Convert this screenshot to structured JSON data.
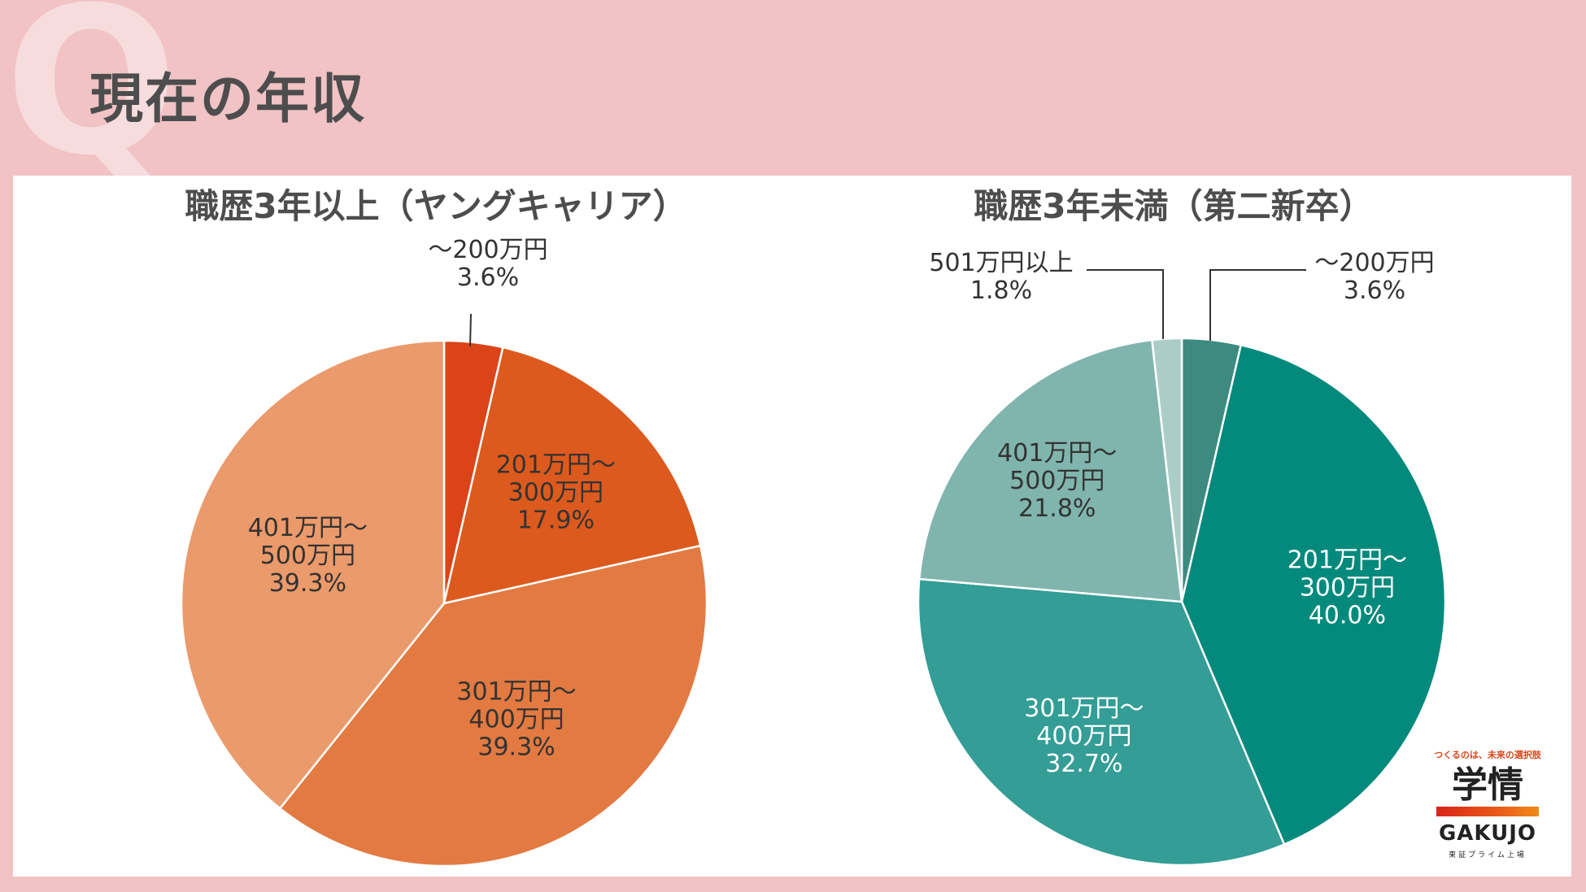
{
  "header": {
    "q_letter": "Q",
    "title": "現在の年収"
  },
  "chart_data": [
    {
      "type": "pie",
      "title": "職歴3年以上（ヤングキャリア）",
      "categories": [
        "～200万円",
        "201万円～300万円",
        "301万円～400万円",
        "401万円～500万円"
      ],
      "values": [
        3.6,
        17.9,
        39.3,
        39.3
      ],
      "labels": [
        [
          "～200万円",
          "3.6%"
        ],
        [
          "201万円～",
          "300万円",
          "17.9%"
        ],
        [
          "301万円～",
          "400万円",
          "39.3%"
        ],
        [
          "401万円～",
          "500万円",
          "39.3%"
        ]
      ],
      "colors": [
        "#da4418",
        "#dc5a1d",
        "#e27a41",
        "#eb9a6b"
      ],
      "light_labels": [
        false,
        false,
        false,
        false
      ]
    },
    {
      "type": "pie",
      "title": "職歴3年未満（第二新卒）",
      "categories": [
        "～200万円",
        "201万円～300万円",
        "301万円～400万円",
        "401万円～500万円",
        "501万円以上"
      ],
      "values": [
        3.6,
        40.0,
        32.7,
        21.8,
        1.8
      ],
      "labels": [
        [
          "～200万円",
          "3.6%"
        ],
        [
          "201万円～",
          "300万円",
          "40.0%"
        ],
        [
          "301万円～",
          "400万円",
          "32.7%"
        ],
        [
          "401万円～",
          "500万円",
          "21.8%"
        ],
        [
          "501万円以上",
          "1.8%"
        ]
      ],
      "colors": [
        "#3d8a80",
        "#038a7c",
        "#339d96",
        "#80b5ae",
        "#abcdc8"
      ],
      "light_labels": [
        false,
        true,
        true,
        false,
        false
      ]
    }
  ],
  "brand": {
    "tagline": "つくるのは、未来の選択肢",
    "kanji": "学情",
    "roman": "GAKUJO",
    "sub": "東証プライム上場"
  }
}
